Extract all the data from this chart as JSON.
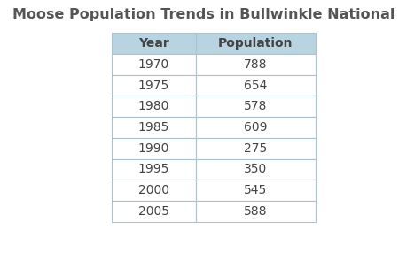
{
  "title": "Moose Population Trends in Bullwinkle National Park",
  "col_headers": [
    "Year",
    "Population"
  ],
  "rows": [
    [
      "1970",
      "788"
    ],
    [
      "1975",
      "654"
    ],
    [
      "1980",
      "578"
    ],
    [
      "1985",
      "609"
    ],
    [
      "1990",
      "275"
    ],
    [
      "1995",
      "350"
    ],
    [
      "2000",
      "545"
    ],
    [
      "2005",
      "588"
    ]
  ],
  "header_bg_color": "#b8d4e0",
  "cell_bg_color": "#ffffff",
  "border_color": "#a8c4d0",
  "title_color": "#555555",
  "text_color": "#444444",
  "title_fontsize": 11.5,
  "header_fontsize": 10,
  "cell_fontsize": 10,
  "bg_color": "#ffffff"
}
